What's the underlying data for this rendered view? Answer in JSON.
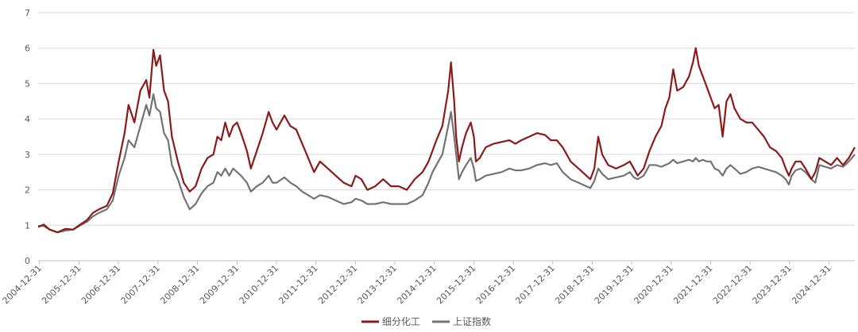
{
  "chart_data": {
    "type": "line",
    "title": "",
    "xlabel": "",
    "ylabel": "",
    "ylim": [
      0,
      7
    ],
    "y_ticks": [
      "0",
      "1",
      "2",
      "3",
      "4",
      "5",
      "6",
      "7"
    ],
    "x_tick_labels": [
      "2004-12-31",
      "2005-12-31",
      "2006-12-31",
      "2007-12-31",
      "2008-12-31",
      "2009-12-31",
      "2010-12-31",
      "2011-12-31",
      "2012-12-31",
      "2013-12-31",
      "2014-12-31",
      "2015-12-31",
      "2016-12-31",
      "2017-12-31",
      "2018-12-31",
      "2019-12-31",
      "2020-12-31",
      "2021-12-31",
      "2022-12-31",
      "2023-12-31",
      "2024-12-31"
    ],
    "x_range": [
      2004.96,
      2025.65
    ],
    "grid": "horizontal",
    "legend_position": "bottom",
    "series": [
      {
        "name": "细分化工",
        "color": "#8b1a1a",
        "points": [
          [
            2004.96,
            0.95
          ],
          [
            2005.1,
            1.02
          ],
          [
            2005.25,
            0.88
          ],
          [
            2005.45,
            0.8
          ],
          [
            2005.65,
            0.9
          ],
          [
            2005.85,
            0.88
          ],
          [
            2006.0,
            1.0
          ],
          [
            2006.2,
            1.15
          ],
          [
            2006.35,
            1.35
          ],
          [
            2006.5,
            1.45
          ],
          [
            2006.7,
            1.55
          ],
          [
            2006.85,
            1.9
          ],
          [
            2007.0,
            2.8
          ],
          [
            2007.15,
            3.6
          ],
          [
            2007.25,
            4.4
          ],
          [
            2007.4,
            3.9
          ],
          [
            2007.55,
            4.8
          ],
          [
            2007.7,
            5.1
          ],
          [
            2007.78,
            4.6
          ],
          [
            2007.88,
            5.95
          ],
          [
            2007.95,
            5.5
          ],
          [
            2008.05,
            5.8
          ],
          [
            2008.15,
            4.8
          ],
          [
            2008.25,
            4.5
          ],
          [
            2008.35,
            3.5
          ],
          [
            2008.5,
            2.8
          ],
          [
            2008.65,
            2.2
          ],
          [
            2008.8,
            1.95
          ],
          [
            2008.95,
            2.1
          ],
          [
            2009.1,
            2.6
          ],
          [
            2009.25,
            2.9
          ],
          [
            2009.4,
            3.0
          ],
          [
            2009.5,
            3.5
          ],
          [
            2009.6,
            3.4
          ],
          [
            2009.7,
            3.9
          ],
          [
            2009.8,
            3.5
          ],
          [
            2009.9,
            3.8
          ],
          [
            2010.0,
            3.9
          ],
          [
            2010.1,
            3.6
          ],
          [
            2010.25,
            3.1
          ],
          [
            2010.35,
            2.6
          ],
          [
            2010.5,
            3.1
          ],
          [
            2010.65,
            3.6
          ],
          [
            2010.8,
            4.2
          ],
          [
            2010.9,
            3.9
          ],
          [
            2011.0,
            3.7
          ],
          [
            2011.2,
            4.1
          ],
          [
            2011.35,
            3.8
          ],
          [
            2011.5,
            3.7
          ],
          [
            2011.65,
            3.3
          ],
          [
            2011.8,
            2.9
          ],
          [
            2011.95,
            2.5
          ],
          [
            2012.1,
            2.8
          ],
          [
            2012.3,
            2.6
          ],
          [
            2012.5,
            2.4
          ],
          [
            2012.7,
            2.2
          ],
          [
            2012.9,
            2.1
          ],
          [
            2013.0,
            2.4
          ],
          [
            2013.15,
            2.3
          ],
          [
            2013.3,
            2.0
          ],
          [
            2013.5,
            2.1
          ],
          [
            2013.7,
            2.3
          ],
          [
            2013.9,
            2.1
          ],
          [
            2014.1,
            2.1
          ],
          [
            2014.3,
            2.0
          ],
          [
            2014.5,
            2.3
          ],
          [
            2014.7,
            2.5
          ],
          [
            2014.85,
            2.8
          ],
          [
            2014.95,
            3.1
          ],
          [
            2015.05,
            3.4
          ],
          [
            2015.2,
            3.8
          ],
          [
            2015.35,
            4.8
          ],
          [
            2015.42,
            5.6
          ],
          [
            2015.5,
            4.5
          ],
          [
            2015.55,
            3.5
          ],
          [
            2015.62,
            2.8
          ],
          [
            2015.7,
            3.2
          ],
          [
            2015.8,
            3.6
          ],
          [
            2015.92,
            3.9
          ],
          [
            2016.0,
            3.5
          ],
          [
            2016.05,
            2.8
          ],
          [
            2016.15,
            2.9
          ],
          [
            2016.3,
            3.2
          ],
          [
            2016.5,
            3.3
          ],
          [
            2016.7,
            3.35
          ],
          [
            2016.9,
            3.4
          ],
          [
            2017.05,
            3.3
          ],
          [
            2017.2,
            3.4
          ],
          [
            2017.4,
            3.5
          ],
          [
            2017.6,
            3.6
          ],
          [
            2017.8,
            3.55
          ],
          [
            2017.95,
            3.4
          ],
          [
            2018.1,
            3.4
          ],
          [
            2018.25,
            3.2
          ],
          [
            2018.45,
            2.8
          ],
          [
            2018.65,
            2.6
          ],
          [
            2018.85,
            2.4
          ],
          [
            2018.95,
            2.3
          ],
          [
            2019.05,
            2.6
          ],
          [
            2019.15,
            3.5
          ],
          [
            2019.25,
            3.0
          ],
          [
            2019.4,
            2.7
          ],
          [
            2019.6,
            2.6
          ],
          [
            2019.8,
            2.7
          ],
          [
            2019.95,
            2.8
          ],
          [
            2020.05,
            2.6
          ],
          [
            2020.15,
            2.4
          ],
          [
            2020.3,
            2.6
          ],
          [
            2020.45,
            3.1
          ],
          [
            2020.6,
            3.5
          ],
          [
            2020.75,
            3.8
          ],
          [
            2020.85,
            4.3
          ],
          [
            2020.95,
            4.6
          ],
          [
            2021.05,
            5.4
          ],
          [
            2021.15,
            4.8
          ],
          [
            2021.3,
            4.9
          ],
          [
            2021.45,
            5.2
          ],
          [
            2021.55,
            5.6
          ],
          [
            2021.62,
            6.0
          ],
          [
            2021.7,
            5.5
          ],
          [
            2021.8,
            5.2
          ],
          [
            2021.9,
            4.9
          ],
          [
            2022.0,
            4.6
          ],
          [
            2022.1,
            4.3
          ],
          [
            2022.2,
            4.4
          ],
          [
            2022.3,
            3.5
          ],
          [
            2022.4,
            4.5
          ],
          [
            2022.5,
            4.7
          ],
          [
            2022.6,
            4.3
          ],
          [
            2022.75,
            4.0
          ],
          [
            2022.9,
            3.9
          ],
          [
            2023.05,
            3.9
          ],
          [
            2023.2,
            3.7
          ],
          [
            2023.35,
            3.5
          ],
          [
            2023.5,
            3.2
          ],
          [
            2023.65,
            3.1
          ],
          [
            2023.8,
            2.9
          ],
          [
            2023.9,
            2.6
          ],
          [
            2023.98,
            2.4
          ],
          [
            2024.05,
            2.6
          ],
          [
            2024.15,
            2.8
          ],
          [
            2024.28,
            2.8
          ],
          [
            2024.4,
            2.6
          ],
          [
            2024.55,
            2.3
          ],
          [
            2024.65,
            2.5
          ],
          [
            2024.75,
            2.9
          ],
          [
            2024.9,
            2.8
          ],
          [
            2025.05,
            2.7
          ],
          [
            2025.2,
            2.9
          ],
          [
            2025.35,
            2.7
          ],
          [
            2025.5,
            2.9
          ],
          [
            2025.65,
            3.2
          ]
        ]
      },
      {
        "name": "上证指数",
        "color": "#737373",
        "points": [
          [
            2004.96,
            0.98
          ],
          [
            2005.1,
            0.98
          ],
          [
            2005.25,
            0.88
          ],
          [
            2005.45,
            0.8
          ],
          [
            2005.65,
            0.85
          ],
          [
            2005.85,
            0.88
          ],
          [
            2006.0,
            0.98
          ],
          [
            2006.2,
            1.1
          ],
          [
            2006.35,
            1.25
          ],
          [
            2006.5,
            1.35
          ],
          [
            2006.7,
            1.45
          ],
          [
            2006.85,
            1.7
          ],
          [
            2007.0,
            2.4
          ],
          [
            2007.15,
            2.9
          ],
          [
            2007.25,
            3.4
          ],
          [
            2007.4,
            3.2
          ],
          [
            2007.55,
            3.8
          ],
          [
            2007.7,
            4.4
          ],
          [
            2007.78,
            4.1
          ],
          [
            2007.88,
            4.7
          ],
          [
            2007.95,
            4.3
          ],
          [
            2008.05,
            4.2
          ],
          [
            2008.15,
            3.6
          ],
          [
            2008.25,
            3.4
          ],
          [
            2008.35,
            2.7
          ],
          [
            2008.5,
            2.3
          ],
          [
            2008.65,
            1.8
          ],
          [
            2008.8,
            1.45
          ],
          [
            2008.95,
            1.6
          ],
          [
            2009.1,
            1.9
          ],
          [
            2009.25,
            2.1
          ],
          [
            2009.4,
            2.2
          ],
          [
            2009.5,
            2.5
          ],
          [
            2009.6,
            2.4
          ],
          [
            2009.7,
            2.6
          ],
          [
            2009.8,
            2.4
          ],
          [
            2009.9,
            2.6
          ],
          [
            2010.0,
            2.5
          ],
          [
            2010.1,
            2.4
          ],
          [
            2010.25,
            2.2
          ],
          [
            2010.35,
            1.95
          ],
          [
            2010.5,
            2.1
          ],
          [
            2010.65,
            2.2
          ],
          [
            2010.8,
            2.4
          ],
          [
            2010.9,
            2.2
          ],
          [
            2011.0,
            2.2
          ],
          [
            2011.2,
            2.35
          ],
          [
            2011.35,
            2.2
          ],
          [
            2011.5,
            2.1
          ],
          [
            2011.65,
            1.95
          ],
          [
            2011.8,
            1.85
          ],
          [
            2011.95,
            1.75
          ],
          [
            2012.1,
            1.85
          ],
          [
            2012.3,
            1.8
          ],
          [
            2012.5,
            1.7
          ],
          [
            2012.7,
            1.6
          ],
          [
            2012.9,
            1.65
          ],
          [
            2013.0,
            1.75
          ],
          [
            2013.15,
            1.7
          ],
          [
            2013.3,
            1.6
          ],
          [
            2013.5,
            1.6
          ],
          [
            2013.7,
            1.65
          ],
          [
            2013.9,
            1.6
          ],
          [
            2014.1,
            1.6
          ],
          [
            2014.3,
            1.6
          ],
          [
            2014.5,
            1.7
          ],
          [
            2014.7,
            1.85
          ],
          [
            2014.85,
            2.2
          ],
          [
            2014.95,
            2.5
          ],
          [
            2015.05,
            2.7
          ],
          [
            2015.2,
            3.0
          ],
          [
            2015.35,
            3.8
          ],
          [
            2015.42,
            4.2
          ],
          [
            2015.5,
            3.5
          ],
          [
            2015.55,
            3.0
          ],
          [
            2015.62,
            2.3
          ],
          [
            2015.7,
            2.5
          ],
          [
            2015.8,
            2.7
          ],
          [
            2015.92,
            2.9
          ],
          [
            2016.0,
            2.6
          ],
          [
            2016.05,
            2.25
          ],
          [
            2016.15,
            2.3
          ],
          [
            2016.3,
            2.4
          ],
          [
            2016.5,
            2.45
          ],
          [
            2016.7,
            2.5
          ],
          [
            2016.9,
            2.6
          ],
          [
            2017.05,
            2.55
          ],
          [
            2017.2,
            2.55
          ],
          [
            2017.4,
            2.6
          ],
          [
            2017.6,
            2.7
          ],
          [
            2017.8,
            2.75
          ],
          [
            2017.95,
            2.7
          ],
          [
            2018.1,
            2.75
          ],
          [
            2018.25,
            2.5
          ],
          [
            2018.45,
            2.3
          ],
          [
            2018.65,
            2.2
          ],
          [
            2018.85,
            2.1
          ],
          [
            2018.95,
            2.05
          ],
          [
            2019.05,
            2.25
          ],
          [
            2019.15,
            2.6
          ],
          [
            2019.25,
            2.45
          ],
          [
            2019.4,
            2.3
          ],
          [
            2019.6,
            2.35
          ],
          [
            2019.8,
            2.4
          ],
          [
            2019.95,
            2.5
          ],
          [
            2020.05,
            2.35
          ],
          [
            2020.15,
            2.3
          ],
          [
            2020.3,
            2.4
          ],
          [
            2020.45,
            2.7
          ],
          [
            2020.6,
            2.7
          ],
          [
            2020.75,
            2.65
          ],
          [
            2020.85,
            2.7
          ],
          [
            2020.95,
            2.75
          ],
          [
            2021.05,
            2.85
          ],
          [
            2021.15,
            2.75
          ],
          [
            2021.3,
            2.8
          ],
          [
            2021.45,
            2.85
          ],
          [
            2021.55,
            2.8
          ],
          [
            2021.62,
            2.9
          ],
          [
            2021.7,
            2.8
          ],
          [
            2021.8,
            2.85
          ],
          [
            2021.9,
            2.8
          ],
          [
            2022.0,
            2.8
          ],
          [
            2022.1,
            2.6
          ],
          [
            2022.2,
            2.55
          ],
          [
            2022.3,
            2.4
          ],
          [
            2022.4,
            2.6
          ],
          [
            2022.5,
            2.7
          ],
          [
            2022.6,
            2.6
          ],
          [
            2022.75,
            2.45
          ],
          [
            2022.9,
            2.5
          ],
          [
            2023.05,
            2.6
          ],
          [
            2023.2,
            2.65
          ],
          [
            2023.35,
            2.6
          ],
          [
            2023.5,
            2.55
          ],
          [
            2023.65,
            2.5
          ],
          [
            2023.8,
            2.4
          ],
          [
            2023.9,
            2.3
          ],
          [
            2023.98,
            2.15
          ],
          [
            2024.05,
            2.4
          ],
          [
            2024.15,
            2.55
          ],
          [
            2024.28,
            2.6
          ],
          [
            2024.4,
            2.5
          ],
          [
            2024.55,
            2.3
          ],
          [
            2024.65,
            2.2
          ],
          [
            2024.75,
            2.7
          ],
          [
            2024.9,
            2.65
          ],
          [
            2025.05,
            2.6
          ],
          [
            2025.2,
            2.7
          ],
          [
            2025.35,
            2.65
          ],
          [
            2025.5,
            2.8
          ],
          [
            2025.65,
            3.0
          ]
        ]
      }
    ]
  }
}
